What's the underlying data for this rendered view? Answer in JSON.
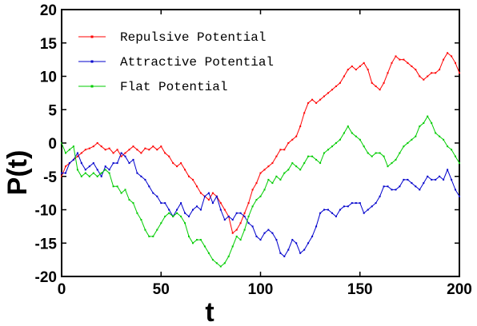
{
  "chart_data": {
    "type": "line",
    "title": "",
    "xlabel": "t",
    "ylabel": "P(t)",
    "xlim": [
      0,
      200
    ],
    "ylim": [
      -20,
      20
    ],
    "x_ticks": [
      0,
      50,
      100,
      150,
      200
    ],
    "y_ticks": [
      -20,
      -15,
      -10,
      -5,
      0,
      5,
      10,
      15,
      20
    ],
    "grid": false,
    "legend_position": "top-left",
    "x": [
      0,
      2,
      4,
      6,
      8,
      10,
      12,
      14,
      16,
      18,
      20,
      22,
      24,
      26,
      28,
      30,
      32,
      34,
      36,
      38,
      40,
      42,
      44,
      46,
      48,
      50,
      52,
      54,
      56,
      58,
      60,
      62,
      64,
      66,
      68,
      70,
      72,
      74,
      76,
      78,
      80,
      82,
      84,
      86,
      88,
      90,
      92,
      94,
      96,
      98,
      100,
      102,
      104,
      106,
      108,
      110,
      112,
      114,
      116,
      118,
      120,
      122,
      124,
      126,
      128,
      130,
      132,
      134,
      136,
      138,
      140,
      142,
      144,
      146,
      148,
      150,
      152,
      154,
      156,
      158,
      160,
      162,
      164,
      166,
      168,
      170,
      172,
      174,
      176,
      178,
      180,
      182,
      184,
      186,
      188,
      190,
      192,
      194,
      196,
      198,
      200
    ],
    "series": [
      {
        "name": "Repulsive Potential",
        "color": "#ff0000",
        "values": [
          -5.0,
          -3.5,
          -3.0,
          -2.5,
          -2.0,
          -1.5,
          -1.0,
          -0.8,
          -0.5,
          0.0,
          -0.5,
          -1.0,
          -0.8,
          -1.5,
          -1.0,
          -2.0,
          -1.5,
          -1.0,
          -0.5,
          -1.0,
          -1.5,
          -0.8,
          -1.0,
          -0.5,
          -1.0,
          -0.5,
          -1.5,
          -2.0,
          -3.0,
          -3.5,
          -3.0,
          -4.0,
          -5.0,
          -5.5,
          -6.5,
          -7.5,
          -8.0,
          -8.5,
          -7.5,
          -8.0,
          -9.0,
          -10.0,
          -11.0,
          -13.5,
          -13.0,
          -12.0,
          -10.5,
          -9.0,
          -7.0,
          -6.0,
          -4.5,
          -4.0,
          -3.5,
          -3.0,
          -2.0,
          -1.0,
          -1.0,
          0.0,
          0.5,
          1.0,
          2.5,
          4.5,
          6.0,
          6.5,
          6.0,
          6.5,
          7.0,
          7.5,
          8.0,
          8.5,
          9.0,
          10.0,
          11.0,
          11.5,
          11.0,
          11.5,
          12.0,
          11.0,
          9.0,
          8.5,
          8.0,
          9.0,
          10.5,
          12.0,
          13.0,
          12.5,
          12.5,
          12.0,
          11.5,
          11.0,
          10.0,
          9.5,
          10.0,
          10.5,
          10.5,
          11.0,
          12.5,
          13.5,
          13.0,
          12.0,
          10.5
        ]
      },
      {
        "name": "Attractive Potential",
        "color": "#0000cc",
        "values": [
          -4.5,
          -4.5,
          -3.0,
          -2.5,
          -1.5,
          -3.0,
          -4.0,
          -3.5,
          -3.0,
          -4.0,
          -5.0,
          -3.5,
          -4.0,
          -3.0,
          -3.0,
          -1.5,
          -2.0,
          -3.0,
          -2.5,
          -4.5,
          -5.0,
          -5.5,
          -6.5,
          -7.5,
          -8.0,
          -9.0,
          -9.0,
          -10.0,
          -11.0,
          -10.0,
          -9.0,
          -10.5,
          -11.0,
          -10.0,
          -9.5,
          -10.0,
          -8.0,
          -7.5,
          -9.0,
          -8.0,
          -10.0,
          -11.5,
          -11.0,
          -11.5,
          -10.5,
          -10.5,
          -11.0,
          -12.0,
          -12.5,
          -14.0,
          -14.5,
          -13.5,
          -13.0,
          -13.5,
          -14.5,
          -16.5,
          -17.0,
          -16.0,
          -14.5,
          -15.0,
          -16.5,
          -16.0,
          -15.0,
          -14.0,
          -12.5,
          -10.5,
          -10.0,
          -10.0,
          -10.5,
          -11.0,
          -10.0,
          -9.5,
          -9.5,
          -9.0,
          -9.0,
          -9.0,
          -10.5,
          -10.0,
          -9.5,
          -9.0,
          -8.0,
          -6.5,
          -6.5,
          -7.0,
          -7.0,
          -6.5,
          -5.5,
          -5.5,
          -6.0,
          -6.5,
          -7.0,
          -6.0,
          -5.0,
          -5.5,
          -5.5,
          -5.0,
          -5.5,
          -4.0,
          -5.5,
          -7.0,
          -8.0
        ]
      },
      {
        "name": "Flat Potential",
        "color": "#00cc00",
        "values": [
          0.0,
          -1.5,
          -1.0,
          -0.5,
          -4.0,
          -5.0,
          -4.5,
          -5.0,
          -4.5,
          -5.0,
          -4.5,
          -4.0,
          -4.5,
          -6.5,
          -6.5,
          -7.5,
          -7.0,
          -8.5,
          -9.0,
          -10.5,
          -11.5,
          -13.0,
          -14.0,
          -14.0,
          -13.0,
          -12.0,
          -11.0,
          -10.5,
          -11.0,
          -10.5,
          -11.0,
          -12.0,
          -14.0,
          -15.0,
          -14.5,
          -14.5,
          -15.5,
          -16.5,
          -17.5,
          -18.0,
          -18.5,
          -18.0,
          -17.0,
          -15.5,
          -14.0,
          -14.5,
          -13.0,
          -11.0,
          -9.5,
          -8.5,
          -8.0,
          -7.0,
          -5.5,
          -6.0,
          -5.0,
          -5.5,
          -4.5,
          -4.0,
          -3.0,
          -3.5,
          -4.0,
          -3.0,
          -2.0,
          -2.0,
          -2.5,
          -3.0,
          -1.5,
          -1.0,
          -0.5,
          0.0,
          0.5,
          1.5,
          2.5,
          1.5,
          1.0,
          0.5,
          -0.5,
          -1.5,
          -2.0,
          -1.5,
          -1.5,
          -2.0,
          -3.5,
          -3.0,
          -2.5,
          -1.5,
          -0.5,
          0.0,
          0.5,
          1.0,
          2.5,
          3.0,
          4.0,
          3.0,
          1.5,
          1.0,
          0.5,
          -0.5,
          -1.0,
          -2.0,
          -3.0
        ]
      }
    ]
  }
}
